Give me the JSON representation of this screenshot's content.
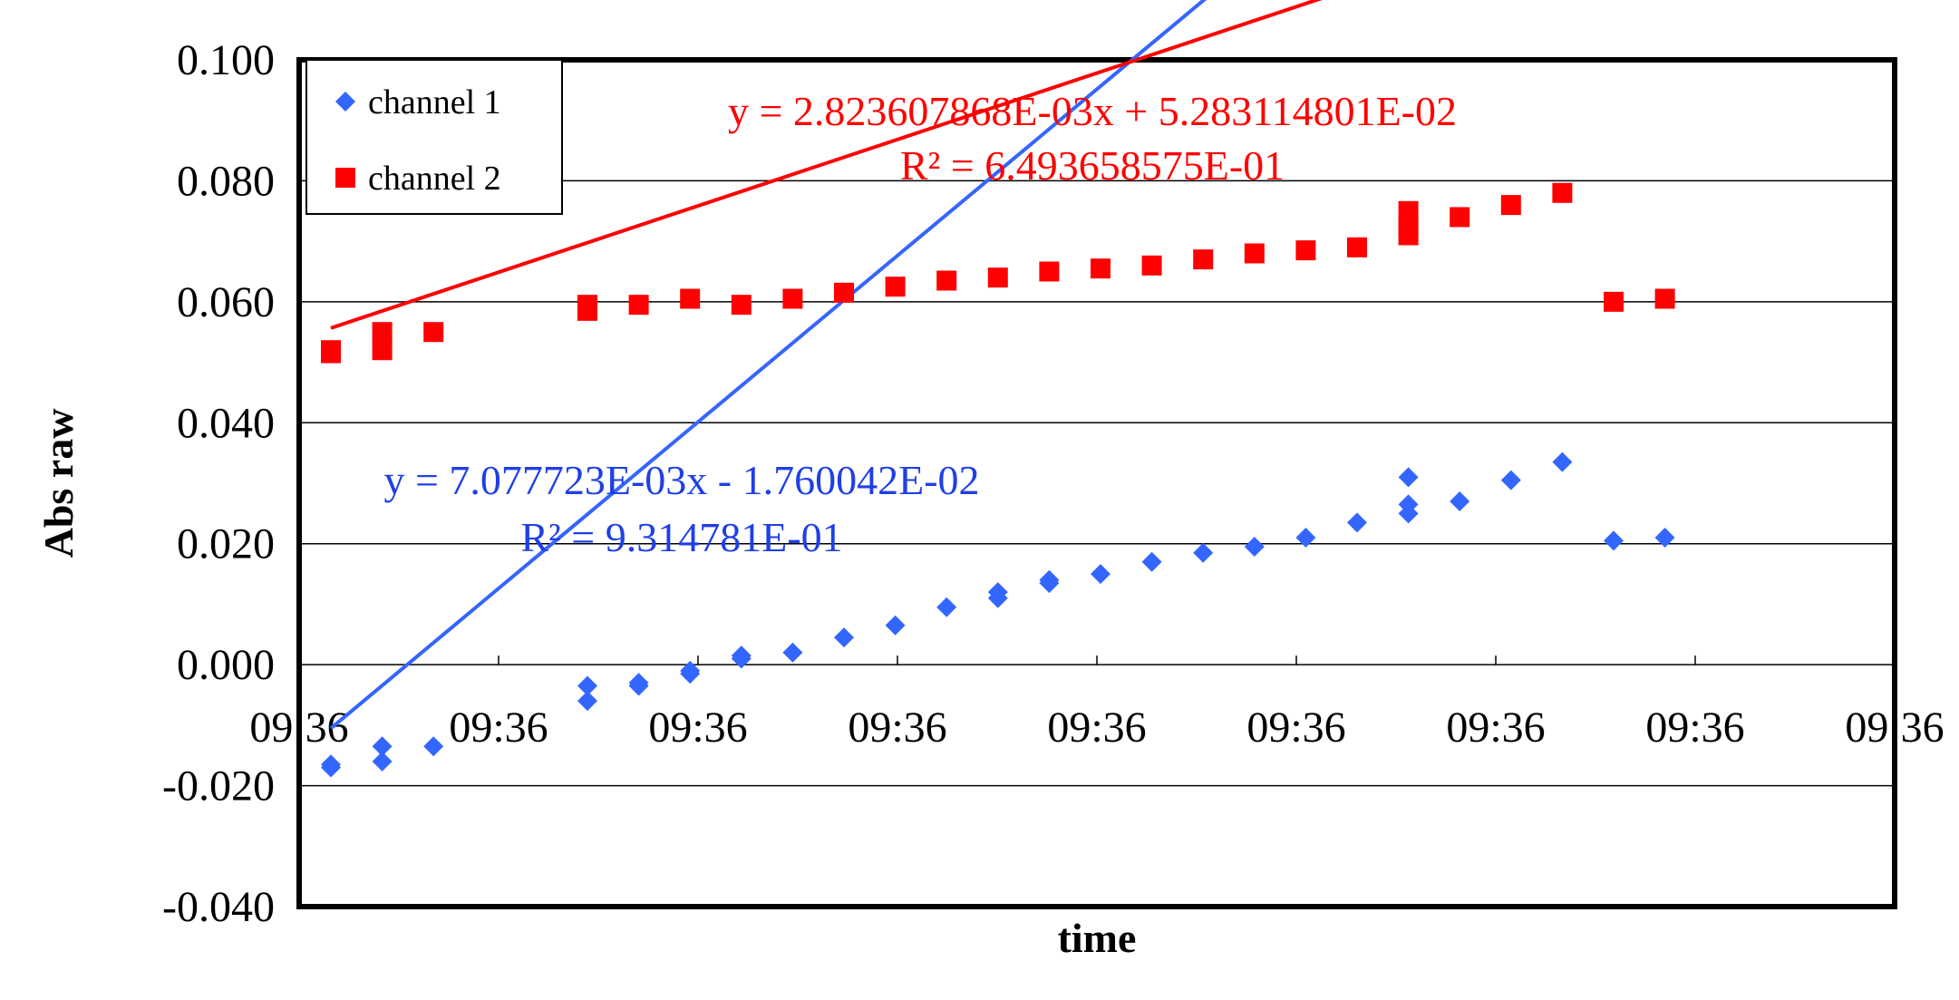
{
  "chart_data": {
    "type": "scatter",
    "xlabel": "time",
    "ylabel": "Abs raw",
    "ylim": [
      -0.04,
      0.1
    ],
    "y_ticks": [
      "0.100",
      "0.080",
      "0.060",
      "0.040",
      "0.020",
      "0.000",
      "-0.020",
      "-0.040"
    ],
    "x_ticks": [
      "09:36",
      "09:36",
      "09:36",
      "09:36",
      "09:36",
      "09:36",
      "09:36",
      "09:36",
      "09:36"
    ],
    "grid": "horizontal",
    "legend_position": "top-left",
    "series": [
      {
        "name": "channel 1",
        "color": "#3366ff",
        "marker": "diamond",
        "points": [
          [
            1,
            -0.017
          ],
          [
            1,
            -0.0165
          ],
          [
            2,
            -0.016
          ],
          [
            2,
            -0.0135
          ],
          [
            3,
            -0.0135
          ],
          [
            6,
            -0.006
          ],
          [
            6,
            -0.0035
          ],
          [
            7,
            -0.0035
          ],
          [
            7,
            -0.003
          ],
          [
            8,
            -0.0015
          ],
          [
            8,
            -0.001
          ],
          [
            9,
            0.001
          ],
          [
            9,
            0.0015
          ],
          [
            10,
            0.002
          ],
          [
            11,
            0.0045
          ],
          [
            12,
            0.0065
          ],
          [
            13,
            0.0095
          ],
          [
            14,
            0.011
          ],
          [
            14,
            0.012
          ],
          [
            15,
            0.0135
          ],
          [
            15,
            0.014
          ],
          [
            16,
            0.015
          ],
          [
            17,
            0.017
          ],
          [
            18,
            0.0185
          ],
          [
            19,
            0.0195
          ],
          [
            20,
            0.021
          ],
          [
            21,
            0.0235
          ],
          [
            22,
            0.025
          ],
          [
            22,
            0.0265
          ],
          [
            22,
            0.031
          ],
          [
            23,
            0.027
          ],
          [
            24,
            0.0305
          ],
          [
            25,
            0.0335
          ],
          [
            26,
            0.0205
          ],
          [
            27,
            0.021
          ]
        ],
        "trendline": {
          "equation": "y = 7.077723E-03x - 1.760042E-02",
          "r_squared": "R² = 9.314781E-01",
          "slope": 0.007077723,
          "intercept": -0.01760042
        }
      },
      {
        "name": "channel 2",
        "color": "#ff0000",
        "marker": "square",
        "points": [
          [
            1,
            0.052
          ],
          [
            1,
            0.0515
          ],
          [
            2,
            0.055
          ],
          [
            2,
            0.052
          ],
          [
            3,
            0.055
          ],
          [
            6,
            0.0585
          ],
          [
            6,
            0.0595
          ],
          [
            7,
            0.0595
          ],
          [
            8,
            0.0605
          ],
          [
            9,
            0.0595
          ],
          [
            10,
            0.0605
          ],
          [
            11,
            0.0615
          ],
          [
            12,
            0.0625
          ],
          [
            13,
            0.0635
          ],
          [
            14,
            0.064
          ],
          [
            15,
            0.065
          ],
          [
            16,
            0.0655
          ],
          [
            17,
            0.066
          ],
          [
            18,
            0.067
          ],
          [
            19,
            0.068
          ],
          [
            20,
            0.0685
          ],
          [
            21,
            0.069
          ],
          [
            22,
            0.071
          ],
          [
            22,
            0.0725
          ],
          [
            22,
            0.075
          ],
          [
            23,
            0.074
          ],
          [
            24,
            0.076
          ],
          [
            25,
            0.078
          ],
          [
            26,
            0.06
          ],
          [
            27,
            0.0605
          ]
        ],
        "trendline": {
          "equation": "y = 2.823607868E-03x + 5.283114801E-02",
          "r_squared": "R² = 6.493658575E-01",
          "slope": 0.002823607868,
          "intercept": 0.05283114801
        }
      }
    ]
  }
}
